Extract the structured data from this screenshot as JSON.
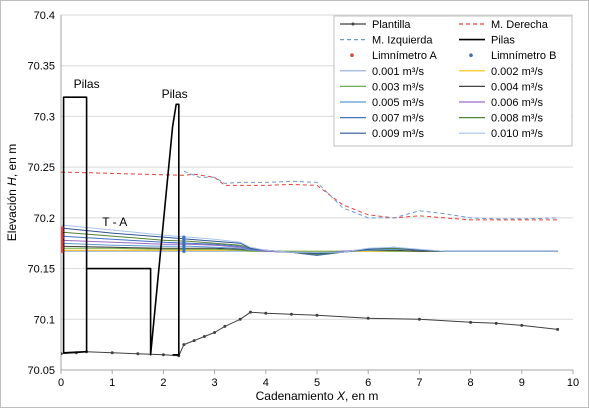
{
  "chart_data": {
    "type": "line",
    "xlabel": "Cadenamiento X, en m",
    "xlabel_parts": [
      "Cadenamiento ",
      "X",
      ", en m"
    ],
    "ylabel": "Elevación H, en m",
    "ylabel_parts": [
      "Elevación ",
      "H",
      ", en m"
    ],
    "xlim": [
      0,
      10
    ],
    "ylim": [
      70.05,
      70.4
    ],
    "xticks": [
      0,
      1,
      2,
      3,
      4,
      5,
      6,
      7,
      8,
      9,
      10
    ],
    "yticks": [
      "70.05",
      "70.1",
      "70.15",
      "70.2",
      "70.25",
      "70.3",
      "70.35",
      "70.4"
    ],
    "grid": "horizontal",
    "legend_position": "top-right",
    "annotations": [
      {
        "text": "Pilas",
        "x": 0.5,
        "y": 70.328
      },
      {
        "text": "Pilas",
        "x": 2.22,
        "y": 70.318
      },
      {
        "text": "T - A",
        "x": 1.05,
        "y": 70.192
      }
    ],
    "series": [
      {
        "name": "Plantilla",
        "color": "#404040",
        "style": "solid",
        "marker": "dot",
        "x": [
          0,
          0.3,
          0.5,
          1.0,
          1.5,
          2.0,
          2.3,
          2.4,
          2.6,
          2.8,
          3.0,
          3.2,
          3.5,
          3.7,
          4.0,
          4.5,
          5.0,
          6.0,
          7.0,
          8.0,
          8.5,
          9.0,
          9.7
        ],
        "y": [
          70.066,
          70.067,
          70.068,
          70.067,
          70.066,
          70.065,
          70.064,
          70.075,
          70.079,
          70.083,
          70.087,
          70.093,
          70.1,
          70.107,
          70.106,
          70.105,
          70.104,
          70.101,
          70.1,
          70.097,
          70.096,
          70.094,
          70.09
        ]
      },
      {
        "name": "M. Derecha",
        "color": "#e8413a",
        "style": "dashed",
        "x": [
          0,
          0.1,
          2.4,
          2.6,
          3.0,
          3.2,
          3.5,
          4.0,
          4.5,
          5.0,
          5.5,
          6.0,
          6.5,
          7.0,
          7.5,
          8.0,
          8.5,
          9.0,
          9.7
        ],
        "y": [
          70.245,
          70.245,
          70.242,
          70.243,
          70.24,
          70.232,
          70.232,
          70.232,
          70.233,
          70.232,
          70.213,
          70.203,
          70.2,
          70.202,
          70.2,
          70.198,
          70.198,
          70.198,
          70.198
        ]
      },
      {
        "name": "M. Izquierda",
        "color": "#6a9ad6",
        "style": "dashed",
        "x": [
          2.4,
          2.7,
          3.0,
          3.2,
          3.5,
          4.0,
          4.5,
          5.0,
          5.5,
          6.0,
          6.5,
          7.0,
          7.5,
          8.0,
          8.5,
          9.0,
          9.7
        ],
        "y": [
          70.246,
          70.24,
          70.24,
          70.234,
          70.235,
          70.235,
          70.236,
          70.235,
          70.21,
          70.2,
          70.2,
          70.207,
          70.204,
          70.2,
          70.199,
          70.199,
          70.2
        ]
      },
      {
        "name": "Pilas",
        "color": "#000000",
        "style": "solid",
        "width": 1.6,
        "x": [
          0.05,
          0.05,
          0.5,
          0.5,
          0.05,
          0.5,
          0.5,
          1.75,
          1.75,
          2.18,
          2.25,
          2.3,
          2.3,
          2.18
        ],
        "y": [
          70.067,
          70.319,
          70.319,
          70.068,
          70.067,
          70.068,
          70.15,
          70.15,
          70.065,
          70.29,
          70.312,
          70.312,
          70.065,
          70.065
        ]
      },
      {
        "name": "Limnímetro A",
        "color": "#e8413a",
        "style": "marker-only",
        "x": [
          0.02,
          0.02,
          0.02,
          0.02,
          0.02,
          0.02,
          0.02,
          0.02,
          0.02,
          0.02
        ],
        "y": [
          70.167,
          70.17,
          70.172,
          70.175,
          70.177,
          70.18,
          70.182,
          70.184,
          70.187,
          70.19
        ]
      },
      {
        "name": "Limnímetro B",
        "color": "#3d6fb8",
        "style": "marker-only",
        "x": [
          2.4,
          2.4,
          2.4,
          2.4,
          2.4,
          2.4,
          2.4,
          2.4,
          2.4,
          2.4
        ],
        "y": [
          70.167,
          70.169,
          70.17,
          70.172,
          70.173,
          70.174,
          70.176,
          70.177,
          70.179,
          70.181
        ]
      },
      {
        "name": "0.001 m³/s",
        "color": "#8faadc",
        "x": [
          0,
          1,
          2,
          2.5,
          3,
          3.5,
          3.7,
          4,
          4.5,
          5,
          5.5,
          6,
          6.5,
          7,
          7.5,
          8,
          8.5,
          9,
          9.7
        ],
        "y": [
          70.167,
          70.167,
          70.167,
          70.167,
          70.167,
          70.167,
          70.167,
          70.167,
          70.167,
          70.166,
          70.167,
          70.167,
          70.167,
          70.167,
          70.167,
          70.167,
          70.167,
          70.167,
          70.167
        ]
      },
      {
        "name": "0.002 m³/s",
        "color": "#ffc000",
        "x": [
          0,
          1,
          2,
          2.5,
          3,
          3.5,
          3.7,
          4,
          4.5,
          5,
          5.5,
          6,
          6.5,
          7,
          7.5,
          8,
          8.5,
          9,
          9.7
        ],
        "y": [
          70.168,
          70.168,
          70.168,
          70.168,
          70.168,
          70.168,
          70.167,
          70.167,
          70.167,
          70.167,
          70.167,
          70.167,
          70.167,
          70.167,
          70.167,
          70.167,
          70.167,
          70.167,
          70.167
        ]
      },
      {
        "name": "0.003 m³/s",
        "color": "#70ad47",
        "x": [
          0,
          1,
          2,
          2.5,
          3,
          3.5,
          3.7,
          4,
          4.5,
          5,
          5.5,
          6,
          6.5,
          7,
          7.5,
          8,
          8.5,
          9,
          9.7
        ],
        "y": [
          70.17,
          70.17,
          70.169,
          70.169,
          70.169,
          70.168,
          70.167,
          70.167,
          70.167,
          70.167,
          70.167,
          70.168,
          70.167,
          70.167,
          70.167,
          70.167,
          70.167,
          70.167,
          70.167
        ]
      },
      {
        "name": "0.004 m³/s",
        "color": "#404040",
        "x": [
          0,
          1,
          2,
          2.5,
          3,
          3.5,
          3.7,
          4,
          4.5,
          5,
          5.5,
          6,
          6.5,
          7,
          7.5,
          8,
          8.5,
          9,
          9.7
        ],
        "y": [
          70.172,
          70.171,
          70.17,
          70.17,
          70.17,
          70.169,
          70.168,
          70.167,
          70.166,
          70.165,
          70.167,
          70.168,
          70.168,
          70.167,
          70.167,
          70.167,
          70.167,
          70.167,
          70.167
        ]
      },
      {
        "name": "0.005 m³/s",
        "color": "#5b9bd5",
        "x": [
          0,
          1,
          2,
          2.5,
          3,
          3.5,
          3.7,
          4,
          4.5,
          5,
          5.5,
          6,
          6.5,
          7,
          7.5,
          8,
          8.5,
          9,
          9.7
        ],
        "y": [
          70.175,
          70.173,
          70.172,
          70.172,
          70.171,
          70.17,
          70.168,
          70.167,
          70.166,
          70.164,
          70.167,
          70.168,
          70.169,
          70.168,
          70.167,
          70.167,
          70.167,
          70.167,
          70.167
        ]
      },
      {
        "name": "0.006 m³/s",
        "color": "#9e6ac7",
        "x": [
          0,
          1,
          2,
          2.5,
          3,
          3.5,
          3.7,
          4,
          4.5,
          5,
          5.5,
          6,
          6.5,
          7,
          7.5,
          8,
          8.5,
          9,
          9.7
        ],
        "y": [
          70.178,
          70.176,
          70.174,
          70.174,
          70.173,
          70.171,
          70.169,
          70.167,
          70.166,
          70.163,
          70.167,
          70.169,
          70.17,
          70.168,
          70.167,
          70.167,
          70.167,
          70.167,
          70.167
        ]
      },
      {
        "name": "0.007 m³/s",
        "color": "#4472c4",
        "x": [
          0,
          1,
          2,
          2.5,
          3,
          3.5,
          3.7,
          4,
          4.5,
          5,
          5.5,
          6,
          6.5,
          7,
          7.5,
          8,
          8.5,
          9,
          9.7
        ],
        "y": [
          70.182,
          70.179,
          70.176,
          70.175,
          70.174,
          70.172,
          70.169,
          70.168,
          70.166,
          70.163,
          70.166,
          70.169,
          70.17,
          70.168,
          70.167,
          70.167,
          70.167,
          70.167,
          70.167
        ]
      },
      {
        "name": "0.008 m³/s",
        "color": "#548235",
        "x": [
          0,
          1,
          2,
          2.5,
          3,
          3.5,
          3.7,
          4,
          4.5,
          5,
          5.5,
          6,
          6.5,
          7,
          7.5,
          8,
          8.5,
          9,
          9.7
        ],
        "y": [
          70.186,
          70.182,
          70.178,
          70.177,
          70.175,
          70.173,
          70.17,
          70.168,
          70.166,
          70.164,
          70.166,
          70.169,
          70.17,
          70.168,
          70.167,
          70.167,
          70.167,
          70.167,
          70.167
        ]
      },
      {
        "name": "0.009 m³/s",
        "color": "#2f5597",
        "x": [
          0,
          1,
          2,
          2.5,
          3,
          3.5,
          3.7,
          4,
          4.5,
          5,
          5.5,
          6,
          6.5,
          7,
          7.5,
          8,
          8.5,
          9,
          9.7
        ],
        "y": [
          70.19,
          70.185,
          70.181,
          70.179,
          70.177,
          70.175,
          70.17,
          70.168,
          70.166,
          70.165,
          70.166,
          70.169,
          70.171,
          70.168,
          70.167,
          70.167,
          70.167,
          70.167,
          70.167
        ]
      },
      {
        "name": "0.010 m³/s",
        "color": "#a9c4eb",
        "x": [
          0,
          1,
          2,
          2.5,
          3,
          3.5,
          3.7,
          4,
          4.5,
          5,
          5.5,
          6,
          6.5,
          7,
          7.5,
          8,
          8.5,
          9,
          9.7
        ],
        "y": [
          70.193,
          70.188,
          70.183,
          70.181,
          70.179,
          70.176,
          70.171,
          70.168,
          70.166,
          70.166,
          70.166,
          70.17,
          70.171,
          70.169,
          70.167,
          70.167,
          70.167,
          70.167,
          70.167
        ]
      }
    ]
  }
}
